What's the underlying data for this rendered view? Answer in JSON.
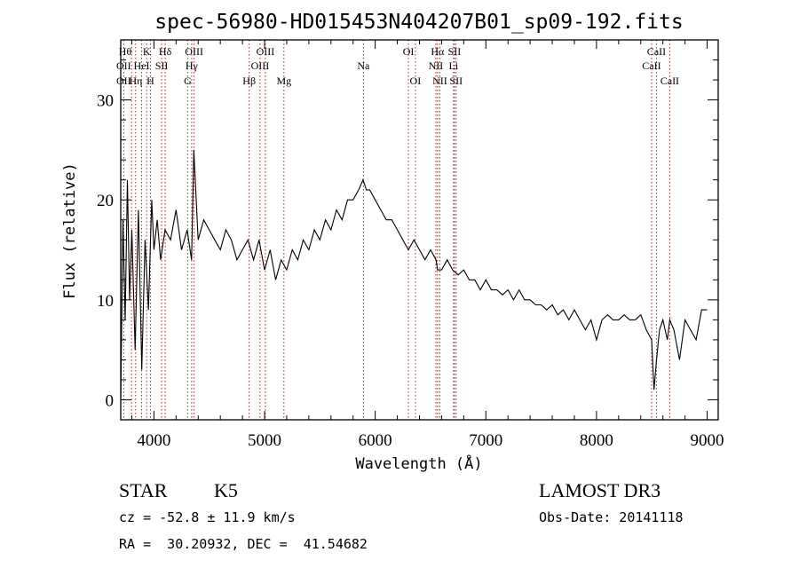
{
  "chart_data": {
    "type": "line",
    "title": "spec-56980-HD015453N404207B01_sp09-192.fits",
    "xlabel": "Wavelength (Å)",
    "ylabel": "Flux (relative)",
    "xlim": [
      3700,
      9100
    ],
    "ylim": [
      -2,
      36
    ],
    "x_ticks": [
      4000,
      5000,
      6000,
      7000,
      8000,
      9000
    ],
    "y_ticks": [
      0,
      10,
      20,
      30
    ],
    "grid": false,
    "series": [
      {
        "color": "#000000",
        "x": [
          3700,
          3720,
          3740,
          3760,
          3780,
          3800,
          3830,
          3860,
          3890,
          3920,
          3950,
          3980,
          4000,
          4030,
          4060,
          4100,
          4150,
          4200,
          4250,
          4300,
          4340,
          4360,
          4400,
          4450,
          4500,
          4550,
          4600,
          4650,
          4700,
          4750,
          4800,
          4850,
          4900,
          4950,
          5000,
          5050,
          5100,
          5150,
          5200,
          5250,
          5300,
          5350,
          5400,
          5450,
          5500,
          5550,
          5600,
          5650,
          5700,
          5750,
          5800,
          5850,
          5890,
          5920,
          5950,
          6000,
          6050,
          6100,
          6150,
          6200,
          6250,
          6300,
          6350,
          6400,
          6450,
          6500,
          6550,
          6563,
          6600,
          6650,
          6700,
          6750,
          6800,
          6850,
          6900,
          6950,
          7000,
          7050,
          7100,
          7150,
          7200,
          7250,
          7300,
          7350,
          7400,
          7450,
          7500,
          7550,
          7600,
          7650,
          7700,
          7750,
          7800,
          7850,
          7900,
          7950,
          8000,
          8050,
          8100,
          8150,
          8200,
          8250,
          8300,
          8350,
          8400,
          8450,
          8498,
          8520,
          8542,
          8570,
          8600,
          8640,
          8662,
          8700,
          8750,
          8800,
          8850,
          8900,
          8950,
          9000
        ],
        "values": [
          0,
          18,
          8,
          22,
          10,
          17,
          5,
          19,
          3,
          16,
          9,
          20,
          15,
          18,
          14,
          17,
          16,
          19,
          15,
          17,
          14,
          25,
          16,
          18,
          17,
          16,
          15,
          17,
          16,
          14,
          15,
          16,
          14,
          16,
          13,
          15,
          12,
          14,
          13,
          15,
          14,
          16,
          15,
          17,
          16,
          18,
          17,
          19,
          18,
          20,
          20,
          21,
          22,
          21,
          21,
          20,
          19,
          18,
          18,
          17,
          16,
          15,
          16,
          15,
          14,
          15,
          14,
          13,
          13,
          14,
          13,
          12.5,
          13,
          12,
          12,
          11,
          12,
          11,
          11,
          10.5,
          11,
          10,
          11,
          10,
          10,
          9.5,
          9.5,
          9,
          9.5,
          8.5,
          9,
          8,
          9,
          8,
          7,
          8,
          6,
          8,
          8.5,
          8,
          8,
          8.5,
          8,
          8,
          8.5,
          7,
          6,
          1,
          4,
          7,
          8,
          6,
          8,
          7,
          4,
          8,
          7,
          6,
          9,
          9
        ]
      }
    ],
    "spectral_lines": [
      {
        "label": "Hθ",
        "x": 3798,
        "row": 0,
        "ha": "end"
      },
      {
        "label": "K",
        "x": 3934,
        "row": 0,
        "ha": "middle"
      },
      {
        "label": "Hδ",
        "x": 4102,
        "row": 0,
        "ha": "middle"
      },
      {
        "label": "OIII",
        "x": 4363,
        "row": 0,
        "ha": "middle"
      },
      {
        "label": "OIII",
        "x": 5007,
        "row": 0,
        "ha": "middle"
      },
      {
        "label": "OI",
        "x": 6300,
        "row": 0,
        "ha": "middle"
      },
      {
        "label": "Hα",
        "x": 6563,
        "row": 0,
        "ha": "middle"
      },
      {
        "label": "SII",
        "x": 6716,
        "row": 0,
        "ha": "middle"
      },
      {
        "label": "CaII",
        "x": 8542,
        "row": 0,
        "ha": "middle"
      },
      {
        "label": "OII",
        "x": 3727,
        "row": 1,
        "ha": "middle"
      },
      {
        "label": "HeI",
        "x": 3889,
        "row": 1,
        "ha": "middle"
      },
      {
        "label": "SII",
        "x": 4070,
        "row": 1,
        "ha": "middle"
      },
      {
        "label": "Hγ",
        "x": 4341,
        "row": 1,
        "ha": "middle"
      },
      {
        "label": "OIII",
        "x": 4959,
        "row": 1,
        "ha": "middle"
      },
      {
        "label": "NII",
        "x": 6548,
        "row": 1,
        "ha": "middle"
      },
      {
        "label": "Li",
        "x": 6708,
        "row": 1,
        "ha": "middle"
      },
      {
        "label": "CaII",
        "x": 8498,
        "row": 1,
        "ha": "middle"
      },
      {
        "label": "OII",
        "x": 3727,
        "row": 2,
        "ha": "middle"
      },
      {
        "label": "Hη",
        "x": 3835,
        "row": 2,
        "ha": "middle"
      },
      {
        "label": "H",
        "x": 3968,
        "row": 2,
        "ha": "middle"
      },
      {
        "label": "G",
        "x": 4305,
        "row": 2,
        "ha": "middle"
      },
      {
        "label": "Hβ",
        "x": 4861,
        "row": 2,
        "ha": "middle"
      },
      {
        "label": "Mg",
        "x": 5175,
        "row": 2,
        "ha": "middle"
      },
      {
        "label": "Na",
        "x": 5893,
        "row": 1,
        "ha": "middle"
      },
      {
        "label": "OI",
        "x": 6363,
        "row": 2,
        "ha": "middle"
      },
      {
        "label": "NII",
        "x": 6584,
        "row": 2,
        "ha": "middle"
      },
      {
        "label": "SII",
        "x": 6731,
        "row": 2,
        "ha": "middle"
      },
      {
        "label": "CaII",
        "x": 8662,
        "row": 2,
        "ha": "middle"
      }
    ]
  },
  "info": {
    "object_type": "STAR",
    "spectral_class": "K5",
    "survey": "LAMOST DR3",
    "redshift": "cz = -52.8 ± 11.9 km/s",
    "obs_date": "Obs-Date: 20141118",
    "coords": "RA =  30.20932, DEC =  41.54682"
  },
  "colors": {
    "spectrum": "#000000",
    "line_marker": "#b22222",
    "axes": "#000000"
  }
}
